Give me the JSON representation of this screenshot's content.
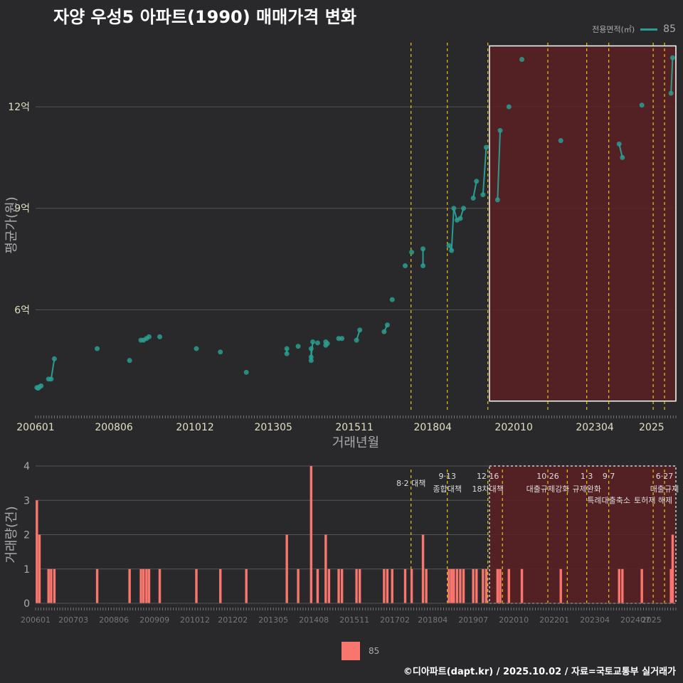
{
  "title": "자양 우성5 아파트(1990) 매매가격 변화",
  "credit": "©디아파트(dapt.kr) / 2025.10.02 / 자료=국토교통부 실거래가",
  "colors": {
    "background": "#29282b",
    "line": "#2a9d8f",
    "bar": "#f8766d",
    "policy_line": "#e6c619",
    "highlight_fill": "#5a1f23",
    "grid": "#555555"
  },
  "chart_data": [
    {
      "type": "line",
      "title": "자양 우성5 아파트(1990) 매매가격 변화",
      "xlabel": "거래년월",
      "ylabel": "평균가(원)",
      "x_ticks": [
        "200601",
        "200806",
        "201012",
        "201305",
        "201511",
        "201804",
        "202010",
        "202304",
        "2025"
      ],
      "y_ticks": [
        {
          "value": 6,
          "label": "6억"
        },
        {
          "value": 9,
          "label": "9억"
        },
        {
          "value": 12,
          "label": "12억"
        }
      ],
      "xlim": [
        2006.0,
        2025.75
      ],
      "ylim": [
        3.0,
        14.0
      ],
      "legend_title": "전용면적(㎡)",
      "series": [
        {
          "name": "85",
          "points": [
            [
              2006.04,
              3.7
            ],
            [
              2006.08,
              3.68
            ],
            [
              2006.12,
              3.72
            ],
            [
              2006.17,
              3.75
            ],
            [
              2006.4,
              3.95
            ],
            [
              2006.48,
              3.95
            ],
            [
              2006.58,
              4.55
            ],
            [
              2007.9,
              4.85
            ],
            [
              2008.9,
              4.5
            ],
            [
              2009.25,
              5.1
            ],
            [
              2009.33,
              5.1
            ],
            [
              2009.42,
              5.15
            ],
            [
              2009.5,
              5.2
            ],
            [
              2009.83,
              5.2
            ],
            [
              2010.96,
              4.85
            ],
            [
              2011.7,
              4.75
            ],
            [
              2012.5,
              4.15
            ],
            [
              2013.75,
              4.85
            ],
            [
              2013.75,
              4.7
            ],
            [
              2014.1,
              4.92
            ],
            [
              2014.5,
              4.85
            ],
            [
              2014.5,
              4.5
            ],
            [
              2014.5,
              4.6
            ],
            [
              2014.55,
              5.05
            ],
            [
              2014.7,
              5.02
            ],
            [
              2014.95,
              5.05
            ],
            [
              2014.95,
              4.95
            ],
            [
              2015.0,
              5.0
            ],
            [
              2015.35,
              5.15
            ],
            [
              2015.45,
              5.15
            ],
            [
              2015.9,
              5.1
            ],
            [
              2016.0,
              5.4
            ],
            [
              2016.75,
              5.35
            ],
            [
              2016.85,
              5.55
            ],
            [
              2017.0,
              6.3
            ],
            [
              2017.4,
              7.3
            ],
            [
              2017.6,
              7.7
            ],
            [
              2017.95,
              7.8
            ],
            [
              2017.95,
              7.3
            ],
            [
              2018.75,
              7.9
            ],
            [
              2018.83,
              7.75
            ],
            [
              2018.9,
              9.0
            ],
            [
              2019.0,
              8.65
            ],
            [
              2019.1,
              8.7
            ],
            [
              2019.2,
              9.0
            ],
            [
              2019.5,
              9.3
            ],
            [
              2019.6,
              9.8
            ],
            [
              2019.8,
              9.4
            ],
            [
              2019.9,
              10.8
            ],
            [
              2020.25,
              9.25
            ],
            [
              2020.33,
              11.3
            ],
            [
              2020.6,
              12.0
            ],
            [
              2021.0,
              13.4
            ],
            [
              2022.2,
              11.0
            ],
            [
              2024.0,
              10.9
            ],
            [
              2024.1,
              10.5
            ],
            [
              2024.7,
              12.05
            ],
            [
              2025.6,
              12.4
            ],
            [
              2025.65,
              13.45
            ]
          ]
        }
      ],
      "policy_lines": [
        2017.58,
        2018.7,
        2019.95,
        2021.8,
        2023.0,
        2023.68,
        2025.05,
        2025.4
      ],
      "highlight_region": {
        "x_from": 2020.0,
        "x_to": 2025.75,
        "y_from": 3.3,
        "y_to": 13.8
      }
    },
    {
      "type": "bar",
      "xlabel": "",
      "ylabel": "거래량(건)",
      "x_ticks": [
        "200601",
        "200703",
        "200806",
        "200909",
        "201012",
        "201202",
        "201305",
        "201408",
        "201511",
        "201702",
        "201804",
        "201907",
        "202010",
        "202201",
        "202304",
        "202407",
        "2025"
      ],
      "y_ticks": [
        0,
        1,
        2,
        3,
        4
      ],
      "xlim": [
        2006.0,
        2025.75
      ],
      "ylim": [
        0,
        4
      ],
      "legend": "85",
      "values": [
        [
          2006.04,
          3
        ],
        [
          2006.12,
          2
        ],
        [
          2006.4,
          1
        ],
        [
          2006.48,
          1
        ],
        [
          2006.58,
          1
        ],
        [
          2007.9,
          1
        ],
        [
          2008.9,
          1
        ],
        [
          2009.25,
          1
        ],
        [
          2009.33,
          1
        ],
        [
          2009.42,
          1
        ],
        [
          2009.5,
          1
        ],
        [
          2009.83,
          1
        ],
        [
          2010.96,
          1
        ],
        [
          2011.7,
          1
        ],
        [
          2012.5,
          1
        ],
        [
          2013.75,
          2
        ],
        [
          2014.1,
          1
        ],
        [
          2014.5,
          4
        ],
        [
          2014.7,
          1
        ],
        [
          2014.95,
          2
        ],
        [
          2015.05,
          1
        ],
        [
          2015.35,
          1
        ],
        [
          2015.45,
          1
        ],
        [
          2015.9,
          1
        ],
        [
          2016.0,
          1
        ],
        [
          2016.75,
          1
        ],
        [
          2016.85,
          1
        ],
        [
          2017.0,
          1
        ],
        [
          2017.4,
          1
        ],
        [
          2017.6,
          1
        ],
        [
          2017.95,
          2
        ],
        [
          2018.05,
          1
        ],
        [
          2018.75,
          1
        ],
        [
          2018.83,
          1
        ],
        [
          2018.9,
          1
        ],
        [
          2019.0,
          1
        ],
        [
          2019.1,
          1
        ],
        [
          2019.2,
          1
        ],
        [
          2019.5,
          1
        ],
        [
          2019.6,
          1
        ],
        [
          2019.8,
          1
        ],
        [
          2019.9,
          1
        ],
        [
          2020.25,
          1
        ],
        [
          2020.33,
          1
        ],
        [
          2020.6,
          1
        ],
        [
          2021.0,
          1
        ],
        [
          2022.2,
          1
        ],
        [
          2024.0,
          1
        ],
        [
          2024.1,
          1
        ],
        [
          2024.7,
          1
        ],
        [
          2025.6,
          1
        ],
        [
          2025.65,
          2
        ]
      ],
      "policy_lines": [
        2017.58,
        2018.7,
        2019.95,
        2020.4,
        2021.8,
        2022.4,
        2023.0,
        2023.68,
        2025.05,
        2025.4
      ],
      "annotations": [
        {
          "x": 2017.58,
          "date": "",
          "label": "8·2 대책"
        },
        {
          "x": 2018.7,
          "date": "9·13",
          "label": "종합대책"
        },
        {
          "x": 2019.95,
          "date": "12·16",
          "label": "18차대책"
        },
        {
          "x": 2021.8,
          "date": "10·26",
          "label": "대출규제강화"
        },
        {
          "x": 2023.0,
          "date": "1·3",
          "label": "규제완화"
        },
        {
          "x": 2023.68,
          "date": "9·7",
          "label": "특례대출축소"
        },
        {
          "x": 2025.05,
          "date": "",
          "label": "토허제 해제"
        },
        {
          "x": 2025.4,
          "date": "6·27",
          "label": "대출규제"
        }
      ],
      "highlight_region": {
        "x_from": 2020.0,
        "x_to": 2025.75,
        "y_from": 0,
        "y_to": 4
      }
    }
  ]
}
